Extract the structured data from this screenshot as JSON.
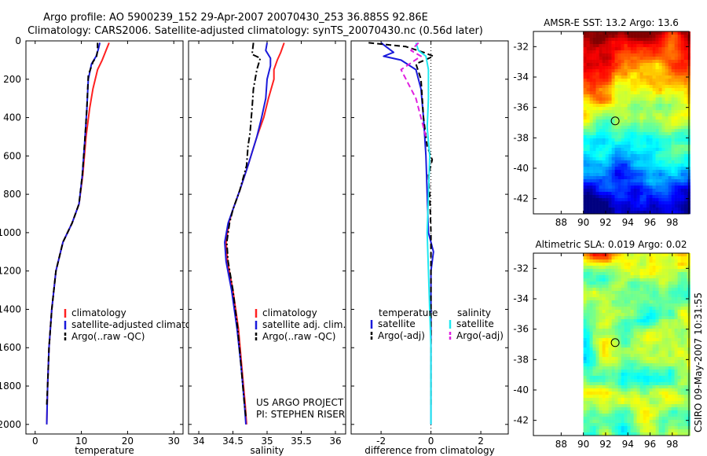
{
  "header": {
    "line1": "Argo profile: AO 5900239_152 29-Apr-2007 20070430_253 36.885S 92.86E",
    "line2": "Climatology: CARS2006. Satellite-adjusted climatology: synTS_20070430.nc (0.56d later)"
  },
  "side_label": "CSIRO 09-May-2007 10:31:55",
  "colors": {
    "red": "#ff2020",
    "blue": "#1a1adb",
    "black": "#000000",
    "cyan": "#20e8f0",
    "magenta": "#e020e0"
  },
  "chart_data": [
    {
      "id": "temperature",
      "type": "line",
      "xlabel": "temperature",
      "ylabel": "",
      "xlim": [
        -2,
        32
      ],
      "ylim": [
        2050,
        0
      ],
      "y_reversed": true,
      "xticks": [
        "0",
        "10",
        "20",
        "30"
      ],
      "xtick_values": [
        0,
        10,
        20,
        30
      ],
      "yticks": [
        "0",
        "200",
        "400",
        "600",
        "800",
        "1000",
        "1200",
        "1400",
        "1600",
        "1800",
        "2000"
      ],
      "ytick_values": [
        0,
        200,
        400,
        600,
        800,
        1000,
        1200,
        1400,
        1600,
        1800,
        2000
      ],
      "legend": [
        "climatology",
        "satellite-adjusted climatology",
        "Argo(..raw -QC)"
      ],
      "series": [
        {
          "name": "climatology",
          "color": "red",
          "dash": "solid",
          "points": [
            [
              16,
              10
            ],
            [
              15.5,
              40
            ],
            [
              15,
              70
            ],
            [
              14.5,
              100
            ],
            [
              13.5,
              150
            ],
            [
              12.5,
              250
            ],
            [
              11.8,
              350
            ],
            [
              11,
              500
            ],
            [
              10.3,
              700
            ],
            [
              9.5,
              850
            ],
            [
              8,
              950
            ],
            [
              6,
              1050
            ],
            [
              4.5,
              1200
            ],
            [
              3.6,
              1400
            ],
            [
              3,
              1600
            ],
            [
              2.7,
              1800
            ],
            [
              2.5,
              2000
            ]
          ]
        },
        {
          "name": "satellite-adjusted climatology",
          "color": "blue",
          "dash": "solid",
          "points": [
            [
              14,
              10
            ],
            [
              13.7,
              40
            ],
            [
              13.2,
              80
            ],
            [
              12.2,
              120
            ],
            [
              11.5,
              200
            ],
            [
              11.2,
              350
            ],
            [
              10.8,
              500
            ],
            [
              10.2,
              700
            ],
            [
              9.5,
              850
            ],
            [
              8,
              950
            ],
            [
              6,
              1050
            ],
            [
              4.5,
              1200
            ],
            [
              3.6,
              1400
            ],
            [
              3,
              1600
            ],
            [
              2.7,
              1800
            ],
            [
              2.5,
              2000
            ]
          ]
        },
        {
          "name": "Argo(..raw -QC)",
          "color": "black",
          "dash": "dash",
          "points": [
            [
              13.5,
              10
            ],
            [
              13.5,
              50
            ],
            [
              13.3,
              80
            ],
            [
              12.5,
              110
            ],
            [
              11.5,
              180
            ],
            [
              11.2,
              350
            ],
            [
              10.8,
              500
            ],
            [
              10.2,
              700
            ],
            [
              9.5,
              850
            ],
            [
              8,
              950
            ],
            [
              6,
              1050
            ],
            [
              4.5,
              1200
            ],
            [
              3.6,
              1400
            ],
            [
              3,
              1600
            ],
            [
              2.7,
              1800
            ],
            [
              2.5,
              1900
            ]
          ]
        }
      ]
    },
    {
      "id": "salinity",
      "type": "line",
      "xlabel": "salinity",
      "ylabel": "",
      "xlim": [
        33.85,
        36.15
      ],
      "ylim": [
        2050,
        0
      ],
      "y_reversed": true,
      "xticks": [
        "34",
        "34.5",
        "35",
        "35.5",
        "36"
      ],
      "xtick_values": [
        34,
        34.5,
        35,
        35.5,
        36
      ],
      "legend": [
        "climatology",
        "satellite adj. clim.",
        "Argo(..raw -QC)"
      ],
      "annotation": [
        "US ARGO PROJECT",
        "PI: STEPHEN RISER"
      ],
      "series": [
        {
          "name": "climatology",
          "color": "red",
          "dash": "solid",
          "points": [
            [
              35.25,
              10
            ],
            [
              35.2,
              60
            ],
            [
              35.15,
              100
            ],
            [
              35.1,
              150
            ],
            [
              35.1,
              200
            ],
            [
              35.02,
              300
            ],
            [
              34.95,
              400
            ],
            [
              34.85,
              500
            ],
            [
              34.72,
              650
            ],
            [
              34.6,
              780
            ],
            [
              34.5,
              880
            ],
            [
              34.44,
              950
            ],
            [
              34.4,
              1050
            ],
            [
              34.42,
              1150
            ],
            [
              34.5,
              1300
            ],
            [
              34.58,
              1500
            ],
            [
              34.63,
              1700
            ],
            [
              34.68,
              1900
            ],
            [
              34.7,
              2000
            ]
          ]
        },
        {
          "name": "satellite adj. clim.",
          "color": "blue",
          "dash": "solid",
          "points": [
            [
              35.0,
              10
            ],
            [
              34.98,
              50
            ],
            [
              35.05,
              90
            ],
            [
              35.05,
              130
            ],
            [
              35.0,
              200
            ],
            [
              34.98,
              300
            ],
            [
              34.92,
              400
            ],
            [
              34.85,
              500
            ],
            [
              34.72,
              650
            ],
            [
              34.6,
              780
            ],
            [
              34.5,
              880
            ],
            [
              34.43,
              950
            ],
            [
              34.38,
              1050
            ],
            [
              34.4,
              1150
            ],
            [
              34.48,
              1300
            ],
            [
              34.56,
              1500
            ],
            [
              34.62,
              1700
            ],
            [
              34.67,
              1900
            ],
            [
              34.69,
              2000
            ]
          ]
        },
        {
          "name": "Argo(..raw -QC)",
          "color": "black",
          "dash": "dashdot",
          "points": [
            [
              34.8,
              10
            ],
            [
              34.78,
              70
            ],
            [
              34.9,
              90
            ],
            [
              34.85,
              150
            ],
            [
              34.8,
              250
            ],
            [
              34.78,
              350
            ],
            [
              34.75,
              480
            ],
            [
              34.72,
              550
            ],
            [
              34.7,
              650
            ],
            [
              34.6,
              780
            ],
            [
              34.5,
              880
            ],
            [
              34.45,
              950
            ],
            [
              34.41,
              1050
            ],
            [
              34.43,
              1150
            ],
            [
              34.5,
              1300
            ],
            [
              34.57,
              1500
            ],
            [
              34.62,
              1700
            ],
            [
              34.67,
              1900
            ],
            [
              34.69,
              1960
            ]
          ]
        }
      ]
    },
    {
      "id": "difference",
      "type": "line",
      "xlabel": "difference from climatology",
      "ylabel": "",
      "xlim": [
        -3.2,
        3.1
      ],
      "ylim": [
        2050,
        0
      ],
      "y_reversed": true,
      "xticks": [
        "-2",
        "0",
        "2"
      ],
      "xtick_values": [
        -2,
        0,
        2
      ],
      "legend_titles": [
        "temperature",
        "salinity"
      ],
      "legend": [
        "satellite",
        "Argo(-adj)",
        "satellite",
        "Argo(-adj)"
      ],
      "series": [
        {
          "name": "temperature satellite",
          "color": "blue",
          "dash": "solid",
          "points": [
            [
              -2.0,
              10
            ],
            [
              -1.8,
              30
            ],
            [
              -1.5,
              60
            ],
            [
              -1.9,
              80
            ],
            [
              -1.2,
              100
            ],
            [
              -0.6,
              150
            ],
            [
              -0.4,
              250
            ],
            [
              -0.3,
              400
            ],
            [
              -0.25,
              500
            ],
            [
              -0.2,
              600
            ],
            [
              -0.15,
              800
            ],
            [
              -0.1,
              1000
            ],
            [
              0.1,
              1100
            ],
            [
              0,
              1200
            ],
            [
              0,
              1400
            ],
            [
              0,
              1600
            ],
            [
              0,
              1800
            ],
            [
              0,
              2000
            ]
          ]
        },
        {
          "name": "temperature Argo(-adj)",
          "color": "black",
          "dash": "dash",
          "points": [
            [
              -2.5,
              10
            ],
            [
              -1.0,
              30
            ],
            [
              -0.3,
              60
            ],
            [
              0.1,
              80
            ],
            [
              -0.6,
              120
            ],
            [
              -0.4,
              200
            ],
            [
              -0.3,
              400
            ],
            [
              -0.2,
              500
            ],
            [
              -0.15,
              550
            ],
            [
              0.05,
              620
            ],
            [
              -0.1,
              700
            ],
            [
              -0.05,
              800
            ],
            [
              0,
              1000
            ],
            [
              0,
              1500
            ],
            [
              0,
              1900
            ]
          ]
        },
        {
          "name": "salinity satellite",
          "color": "cyan",
          "dash": "solid",
          "points": [
            [
              -0.6,
              10
            ],
            [
              -0.5,
              50
            ],
            [
              -0.2,
              80
            ],
            [
              -0.1,
              150
            ],
            [
              -0.1,
              300
            ],
            [
              -0.15,
              450
            ],
            [
              -0.05,
              600
            ],
            [
              -0.1,
              800
            ],
            [
              -0.15,
              1000
            ],
            [
              -0.1,
              1200
            ],
            [
              -0.05,
              1400
            ],
            [
              0,
              1600
            ],
            [
              0,
              1800
            ],
            [
              0,
              2000
            ]
          ]
        },
        {
          "name": "salinity Argo(-adj)",
          "color": "magenta",
          "dash": "dash",
          "points": [
            [
              -0.5,
              10
            ],
            [
              -0.8,
              50
            ],
            [
              -0.4,
              80
            ],
            [
              -1.2,
              150
            ],
            [
              -0.6,
              300
            ],
            [
              -0.4,
              400
            ],
            [
              -0.2,
              500
            ]
          ]
        }
      ]
    },
    {
      "id": "sst_map",
      "type": "heatmap",
      "title": "AMSR-E SST: 13.2 Argo: 13.6",
      "xlim": [
        85.5,
        99.5
      ],
      "ylim": [
        -43,
        -31
      ],
      "xticks": [
        "88",
        "90",
        "92",
        "94",
        "96",
        "98"
      ],
      "xtick_values": [
        88,
        90,
        92,
        94,
        96,
        98
      ],
      "yticks": [
        "-32",
        "-34",
        "-36",
        "-38",
        "-40",
        "-42"
      ],
      "ytick_values": [
        -32,
        -34,
        -36,
        -38,
        -40,
        -42
      ],
      "data_extent_x": [
        90,
        99.5
      ],
      "argo_location": [
        92.86,
        -36.885
      ],
      "color_range": [
        8,
        18
      ]
    },
    {
      "id": "sla_map",
      "type": "heatmap",
      "title": "Altimetric SLA: 0.019 Argo: 0.02",
      "xlim": [
        85.5,
        99.5
      ],
      "ylim": [
        -43,
        -31
      ],
      "xticks": [
        "88",
        "90",
        "92",
        "94",
        "96",
        "98"
      ],
      "xtick_values": [
        88,
        90,
        92,
        94,
        96,
        98
      ],
      "yticks": [
        "-32",
        "-34",
        "-36",
        "-38",
        "-40",
        "-42"
      ],
      "ytick_values": [
        -32,
        -34,
        -36,
        -38,
        -40,
        -42
      ],
      "data_extent_x": [
        90,
        99.5
      ],
      "argo_location": [
        92.86,
        -36.885
      ]
    }
  ]
}
